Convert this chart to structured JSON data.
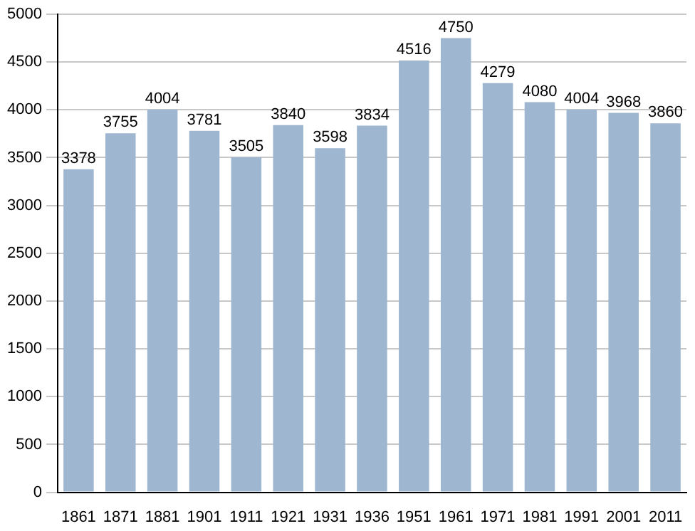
{
  "chart_data": {
    "type": "bar",
    "categories": [
      "1861",
      "1871",
      "1881",
      "1901",
      "1911",
      "1921",
      "1931",
      "1936",
      "1951",
      "1961",
      "1971",
      "1981",
      "1991",
      "2001",
      "2011"
    ],
    "values": [
      3378,
      3755,
      4004,
      3781,
      3505,
      3840,
      3598,
      3834,
      4516,
      4750,
      4279,
      4080,
      4004,
      3968,
      3860
    ],
    "color": "#9fb6d0",
    "ylim": [
      0,
      5000
    ],
    "yticks": [
      0,
      500,
      1000,
      1500,
      2000,
      2500,
      3000,
      3500,
      4000,
      4500,
      5000
    ],
    "grid": "y",
    "data_labels": true
  }
}
